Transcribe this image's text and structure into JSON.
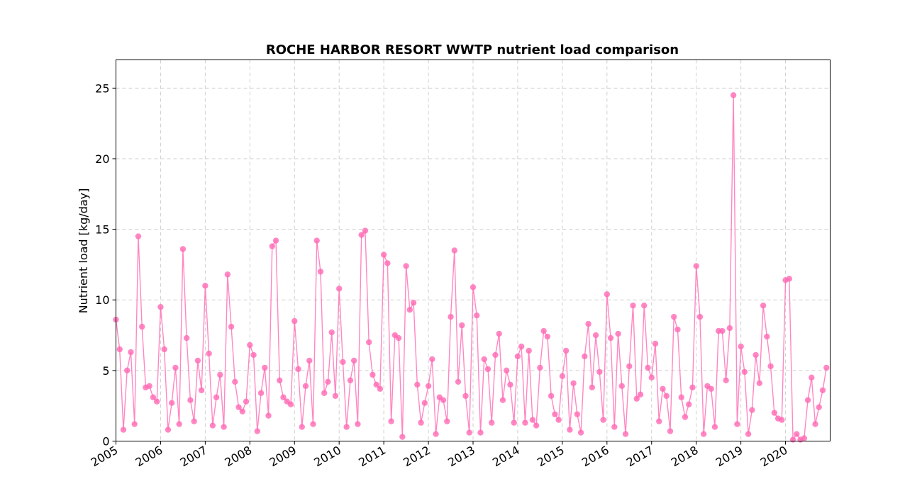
{
  "chart_data": {
    "type": "line",
    "title": "ROCHE HARBOR RESORT WWTP nutrient load comparison",
    "xlabel": "",
    "ylabel": "Nutrient load [kg/day]",
    "ylim": [
      0,
      27
    ],
    "xlim": [
      2005.0,
      2021.0
    ],
    "yticks": [
      0,
      5,
      10,
      15,
      20,
      25
    ],
    "xticks": [
      "2005",
      "2006",
      "2007",
      "2008",
      "2009",
      "2010",
      "2011",
      "2012",
      "2013",
      "2014",
      "2015",
      "2016",
      "2017",
      "2018",
      "2019",
      "2020"
    ],
    "grid": true,
    "series": [
      {
        "name": "Nutrient load",
        "color": "#ff69b4",
        "marker": "circle",
        "start": "2005-01",
        "frequency": "monthly",
        "values": [
          8.6,
          6.5,
          0.8,
          5.0,
          6.3,
          1.2,
          14.5,
          8.1,
          3.8,
          3.9,
          3.1,
          2.8,
          9.5,
          6.5,
          0.8,
          2.7,
          5.2,
          1.2,
          13.6,
          7.3,
          2.9,
          1.4,
          5.7,
          3.6,
          11.0,
          6.2,
          1.1,
          3.1,
          4.7,
          1.0,
          11.8,
          8.1,
          4.2,
          2.4,
          2.1,
          2.8,
          6.8,
          6.1,
          0.7,
          3.4,
          5.2,
          1.8,
          13.8,
          14.2,
          4.3,
          3.1,
          2.8,
          2.6,
          8.5,
          5.1,
          1.0,
          3.9,
          5.7,
          1.2,
          14.2,
          12.0,
          3.4,
          4.2,
          7.7,
          3.2,
          10.8,
          5.6,
          1.0,
          4.3,
          5.7,
          1.2,
          14.6,
          14.9,
          7.0,
          4.7,
          4.0,
          3.7,
          13.2,
          12.6,
          1.4,
          7.5,
          7.3,
          0.3,
          12.4,
          9.3,
          9.8,
          4.0,
          1.3,
          2.7,
          3.9,
          5.8,
          0.5,
          3.1,
          2.9,
          1.4,
          8.8,
          13.5,
          4.2,
          8.2,
          3.2,
          0.6,
          10.9,
          8.9,
          0.6,
          5.8,
          5.1,
          1.3,
          6.1,
          7.6,
          2.9,
          5.0,
          4.0,
          1.3,
          6.0,
          6.7,
          1.3,
          6.4,
          1.5,
          1.1,
          5.2,
          7.8,
          7.4,
          3.2,
          1.9,
          1.5,
          4.6,
          6.4,
          0.8,
          4.1,
          1.9,
          0.6,
          6.0,
          8.3,
          3.8,
          7.5,
          4.9,
          1.5,
          10.4,
          7.3,
          1.0,
          7.6,
          3.9,
          0.5,
          5.3,
          9.6,
          3.0,
          3.3,
          9.6,
          5.2,
          4.5,
          6.9,
          1.4,
          3.7,
          3.2,
          0.7,
          8.8,
          7.9,
          3.1,
          1.7,
          2.6,
          3.8,
          12.4,
          8.8,
          0.5,
          3.9,
          3.7,
          1.0,
          7.8,
          7.8,
          4.3,
          8.0,
          24.5,
          1.2,
          6.7,
          4.9,
          0.5,
          2.2,
          6.1,
          4.1,
          9.6,
          7.4,
          5.3,
          2.0,
          1.6,
          1.5,
          11.4,
          11.5,
          0.1,
          0.5,
          0.1,
          0.2,
          2.9,
          4.5,
          1.2,
          2.4,
          3.6,
          5.2
        ]
      }
    ]
  }
}
